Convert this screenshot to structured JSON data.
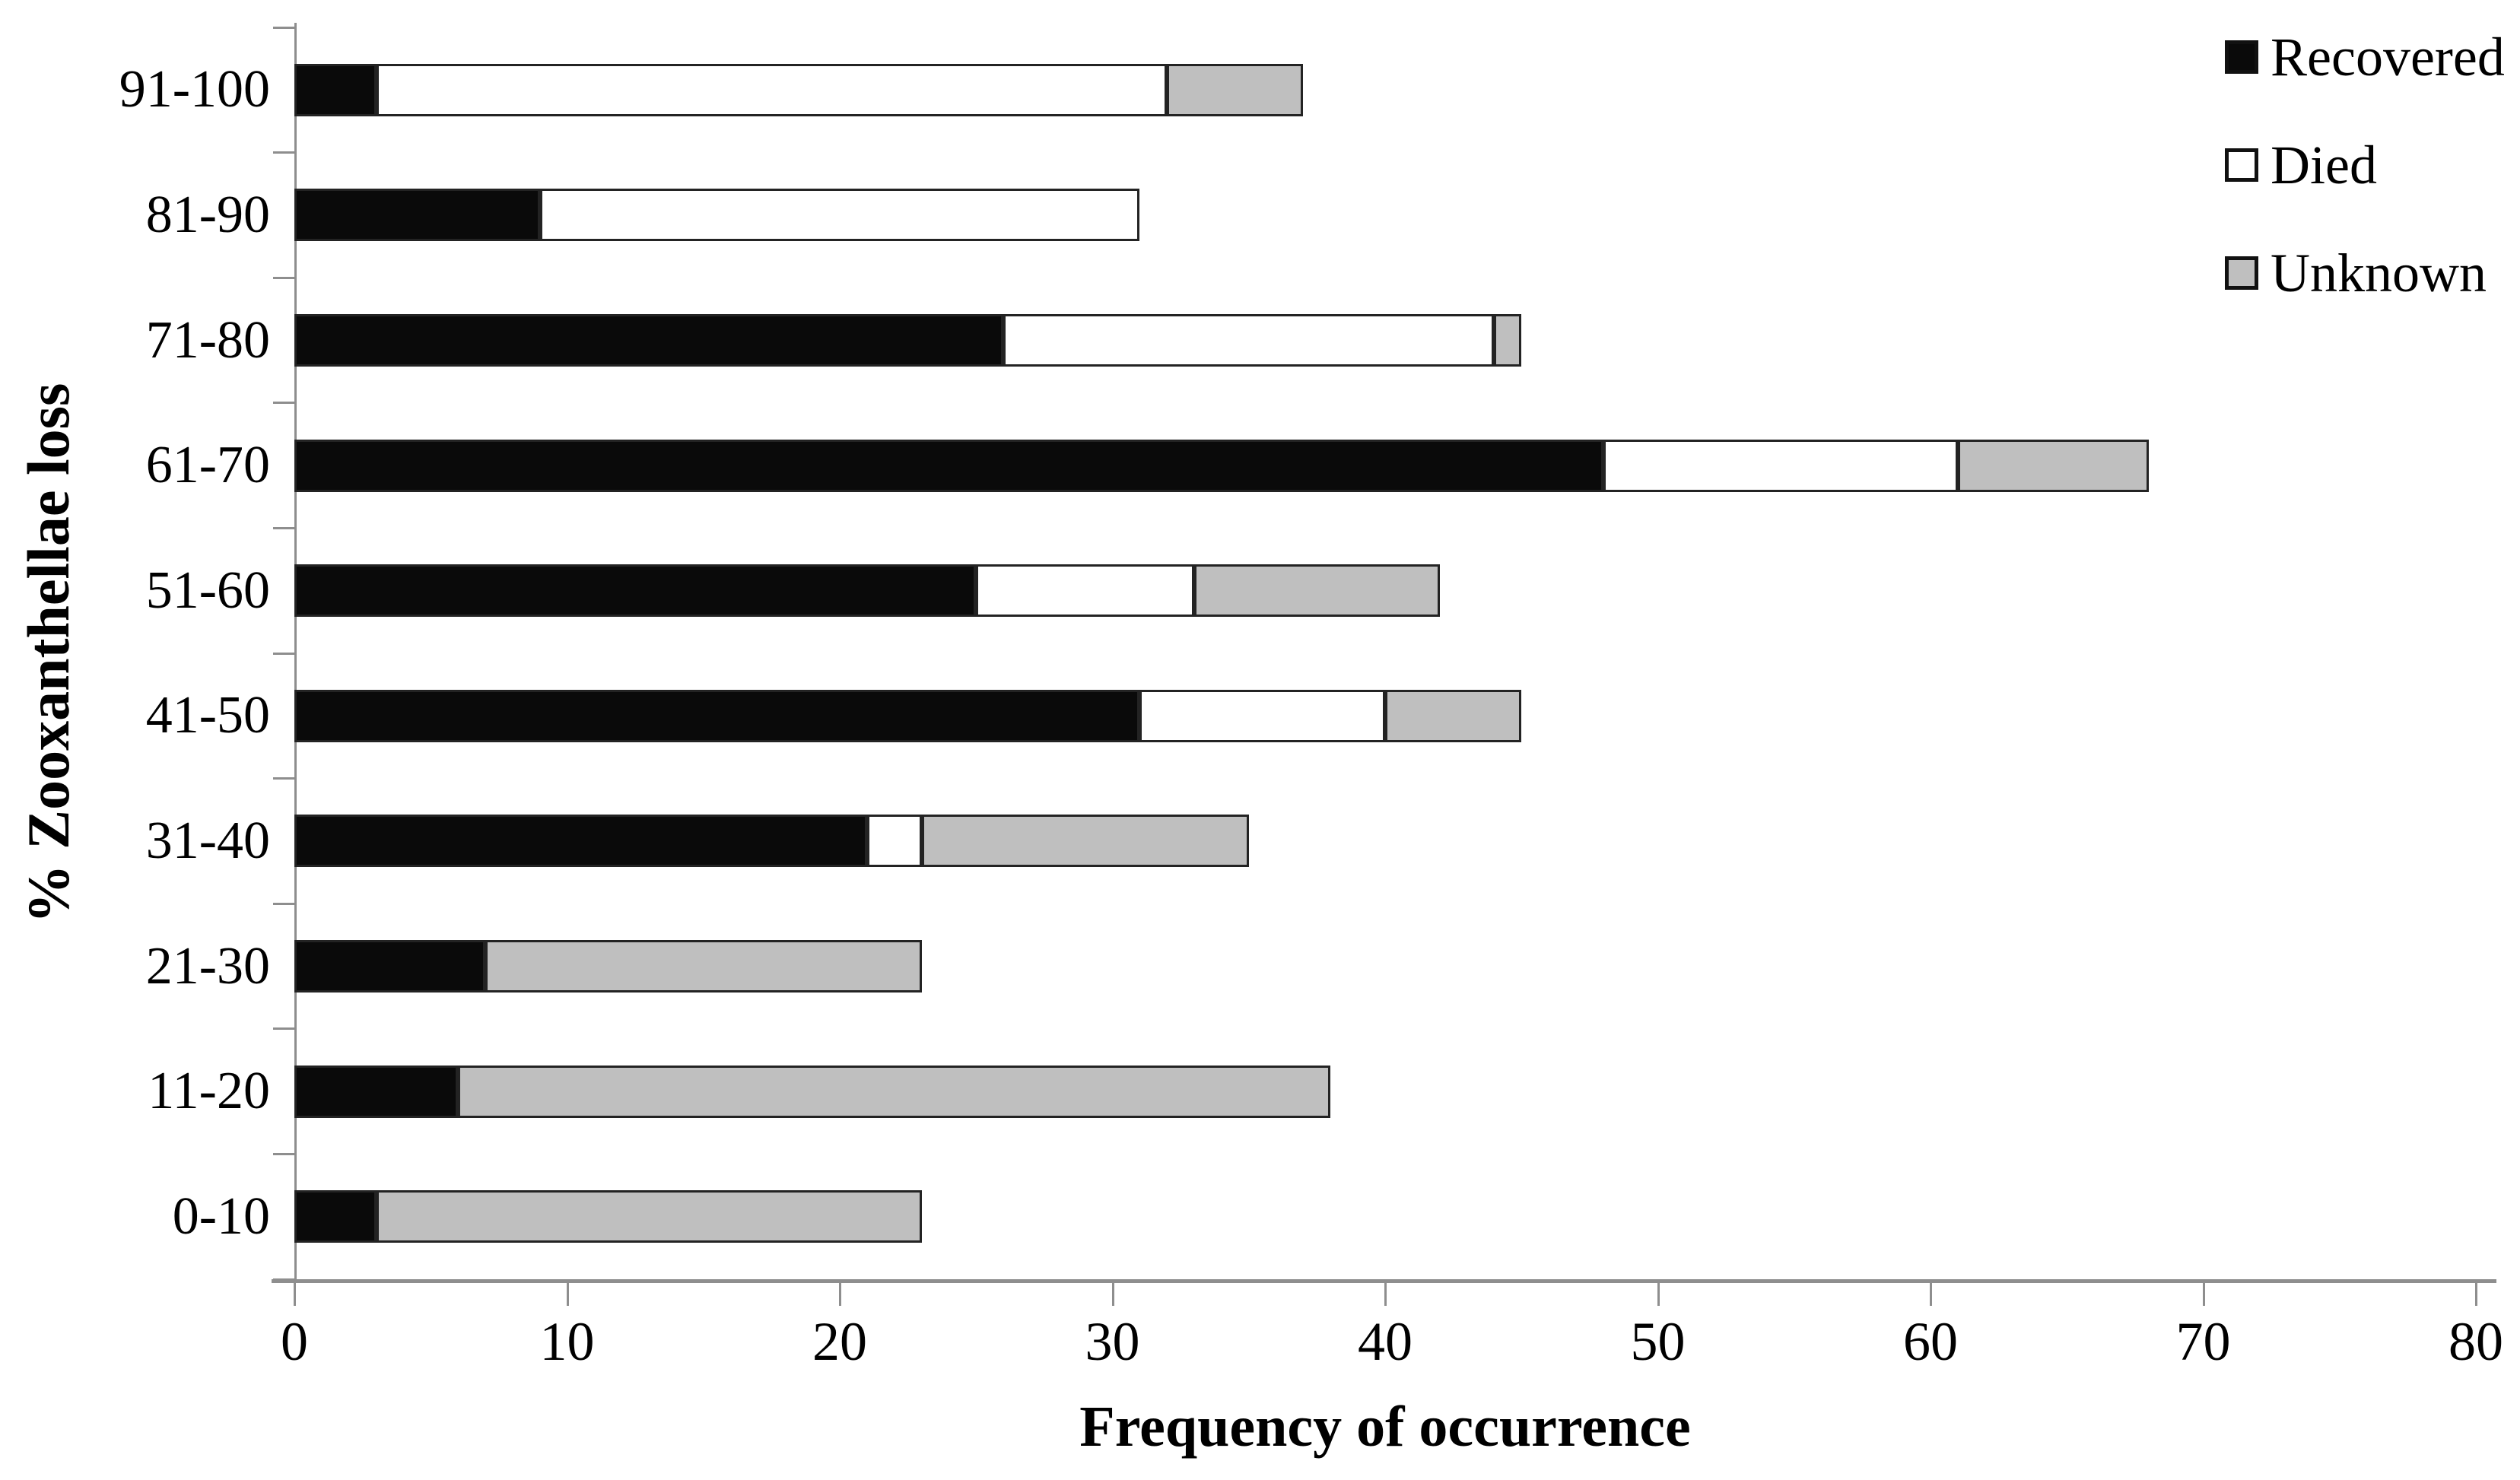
{
  "figure": {
    "background": "#ffffff",
    "text_color": "#000000",
    "axis_color": "#8e8e8e",
    "segment_border_color": "#232323"
  },
  "chart_data": {
    "type": "bar",
    "orientation": "horizontal",
    "stacked": true,
    "title": "",
    "xlabel": "Frequency of occurrence",
    "ylabel": "% Zooxanthellae loss",
    "categories": [
      "91-100",
      "81-90",
      "71-80",
      "61-70",
      "51-60",
      "41-50",
      "31-40",
      "21-30",
      "11-20",
      "0-10"
    ],
    "series": [
      {
        "name": "Recovered",
        "color": "#0a0a0a",
        "values": [
          3,
          9,
          26,
          48,
          25,
          31,
          21,
          7,
          6,
          3
        ]
      },
      {
        "name": "Died",
        "color": "#ffffff",
        "values": [
          29,
          22,
          18,
          13,
          8,
          9,
          2,
          0,
          0,
          0
        ]
      },
      {
        "name": "Unknown",
        "color": "#bfbfbf",
        "values": [
          5,
          0,
          1,
          7,
          9,
          5,
          12,
          16,
          32,
          20
        ]
      }
    ],
    "totals_by_category": [
      37,
      31,
      45,
      68,
      42,
      45,
      35,
      23,
      38,
      23
    ],
    "x_ticks": [
      0,
      10,
      20,
      30,
      40,
      50,
      60,
      70,
      80
    ],
    "xlim": [
      0,
      80
    ],
    "grid": false,
    "legend_position": "top-right",
    "legend_items": [
      "Recovered",
      "Died",
      "Unknown"
    ]
  }
}
